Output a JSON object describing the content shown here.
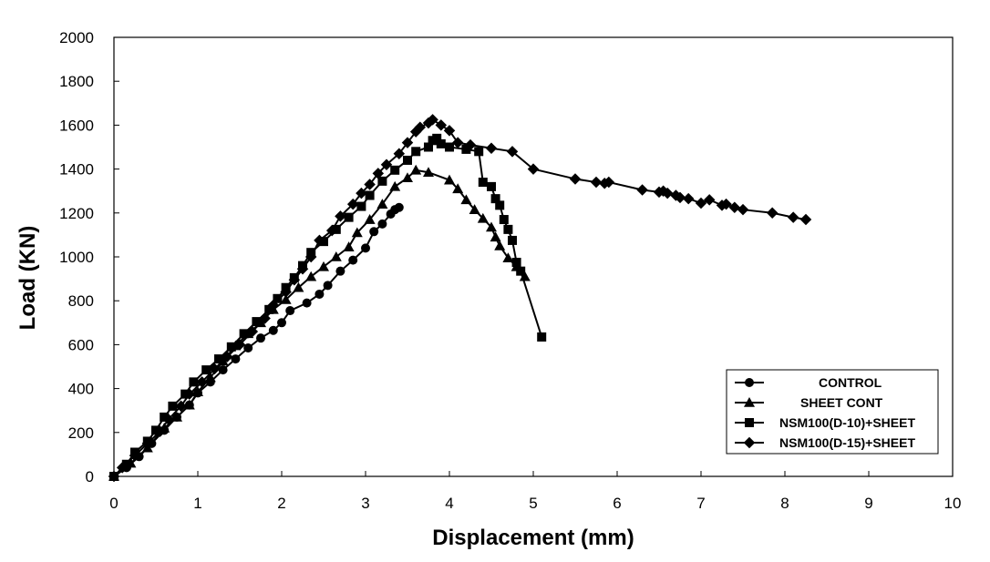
{
  "chart_data": {
    "type": "line",
    "title": "",
    "xlabel": "Displacement (mm)",
    "ylabel": "Load (KN)",
    "xlim": [
      0,
      10
    ],
    "ylim": [
      0,
      2000
    ],
    "xticks": [
      0,
      1,
      2,
      3,
      4,
      5,
      6,
      7,
      8,
      9,
      10
    ],
    "yticks": [
      0,
      200,
      400,
      600,
      800,
      1000,
      1200,
      1400,
      1600,
      1800,
      2000
    ],
    "grid": false,
    "legend_position": "bottom-right",
    "series": [
      {
        "name": "CONTROL",
        "marker": "circle",
        "color": "#000000",
        "points": [
          [
            0,
            0
          ],
          [
            0.15,
            40
          ],
          [
            0.3,
            90
          ],
          [
            0.45,
            150
          ],
          [
            0.6,
            210
          ],
          [
            0.75,
            270
          ],
          [
            0.9,
            325
          ],
          [
            1.0,
            380
          ],
          [
            1.15,
            430
          ],
          [
            1.3,
            485
          ],
          [
            1.45,
            535
          ],
          [
            1.6,
            585
          ],
          [
            1.75,
            630
          ],
          [
            1.9,
            665
          ],
          [
            2.0,
            700
          ],
          [
            2.1,
            755
          ],
          [
            2.3,
            790
          ],
          [
            2.45,
            830
          ],
          [
            2.55,
            870
          ],
          [
            2.7,
            935
          ],
          [
            2.85,
            985
          ],
          [
            3.0,
            1040
          ],
          [
            3.1,
            1115
          ],
          [
            3.2,
            1150
          ],
          [
            3.3,
            1195
          ],
          [
            3.35,
            1215
          ],
          [
            3.4,
            1225
          ]
        ]
      },
      {
        "name": "SHEET CONT",
        "marker": "triangle",
        "color": "#000000",
        "points": [
          [
            0,
            0
          ],
          [
            0.2,
            60
          ],
          [
            0.4,
            130
          ],
          [
            0.6,
            220
          ],
          [
            0.75,
            270
          ],
          [
            0.9,
            325
          ],
          [
            1.0,
            385
          ],
          [
            1.15,
            450
          ],
          [
            1.3,
            525
          ],
          [
            1.45,
            595
          ],
          [
            1.6,
            650
          ],
          [
            1.75,
            700
          ],
          [
            1.9,
            760
          ],
          [
            2.05,
            805
          ],
          [
            2.2,
            860
          ],
          [
            2.35,
            910
          ],
          [
            2.5,
            955
          ],
          [
            2.65,
            1000
          ],
          [
            2.8,
            1045
          ],
          [
            2.9,
            1110
          ],
          [
            3.05,
            1170
          ],
          [
            3.2,
            1240
          ],
          [
            3.35,
            1320
          ],
          [
            3.5,
            1360
          ],
          [
            3.6,
            1395
          ],
          [
            3.75,
            1385
          ],
          [
            4.0,
            1350
          ],
          [
            4.1,
            1310
          ],
          [
            4.2,
            1260
          ],
          [
            4.3,
            1215
          ],
          [
            4.4,
            1175
          ],
          [
            4.5,
            1135
          ],
          [
            4.55,
            1090
          ],
          [
            4.6,
            1050
          ],
          [
            4.7,
            995
          ],
          [
            4.8,
            955
          ],
          [
            4.9,
            910
          ]
        ]
      },
      {
        "name": "NSM100(D-10)+SHEET",
        "marker": "square",
        "color": "#000000",
        "points": [
          [
            0,
            0
          ],
          [
            0.15,
            55
          ],
          [
            0.25,
            110
          ],
          [
            0.4,
            160
          ],
          [
            0.5,
            210
          ],
          [
            0.6,
            270
          ],
          [
            0.7,
            320
          ],
          [
            0.85,
            375
          ],
          [
            0.95,
            430
          ],
          [
            1.1,
            485
          ],
          [
            1.25,
            535
          ],
          [
            1.4,
            590
          ],
          [
            1.55,
            650
          ],
          [
            1.7,
            705
          ],
          [
            1.85,
            760
          ],
          [
            1.95,
            810
          ],
          [
            2.05,
            860
          ],
          [
            2.15,
            905
          ],
          [
            2.25,
            960
          ],
          [
            2.35,
            1020
          ],
          [
            2.5,
            1070
          ],
          [
            2.65,
            1125
          ],
          [
            2.8,
            1180
          ],
          [
            2.95,
            1230
          ],
          [
            3.05,
            1280
          ],
          [
            3.2,
            1345
          ],
          [
            3.35,
            1395
          ],
          [
            3.5,
            1440
          ],
          [
            3.6,
            1480
          ],
          [
            3.75,
            1500
          ],
          [
            3.8,
            1530
          ],
          [
            3.85,
            1540
          ],
          [
            3.9,
            1515
          ],
          [
            4.0,
            1500
          ],
          [
            4.2,
            1490
          ],
          [
            4.35,
            1480
          ],
          [
            4.4,
            1340
          ],
          [
            4.5,
            1320
          ],
          [
            4.55,
            1265
          ],
          [
            4.6,
            1235
          ],
          [
            4.65,
            1170
          ],
          [
            4.7,
            1125
          ],
          [
            4.75,
            1075
          ],
          [
            4.8,
            975
          ],
          [
            4.85,
            935
          ],
          [
            5.1,
            635
          ]
        ]
      },
      {
        "name": "NSM100(D-15)+SHEET",
        "marker": "diamond",
        "color": "#000000",
        "points": [
          [
            0,
            0
          ],
          [
            0.1,
            40
          ],
          [
            0.25,
            95
          ],
          [
            0.4,
            150
          ],
          [
            0.55,
            205
          ],
          [
            0.65,
            260
          ],
          [
            0.8,
            320
          ],
          [
            0.9,
            375
          ],
          [
            1.05,
            430
          ],
          [
            1.2,
            490
          ],
          [
            1.35,
            545
          ],
          [
            1.5,
            600
          ],
          [
            1.65,
            660
          ],
          [
            1.8,
            720
          ],
          [
            1.9,
            780
          ],
          [
            2.05,
            840
          ],
          [
            2.15,
            895
          ],
          [
            2.25,
            945
          ],
          [
            2.35,
            1000
          ],
          [
            2.45,
            1075
          ],
          [
            2.6,
            1120
          ],
          [
            2.7,
            1185
          ],
          [
            2.85,
            1240
          ],
          [
            2.95,
            1290
          ],
          [
            3.05,
            1330
          ],
          [
            3.15,
            1380
          ],
          [
            3.25,
            1420
          ],
          [
            3.4,
            1470
          ],
          [
            3.5,
            1520
          ],
          [
            3.6,
            1570
          ],
          [
            3.65,
            1590
          ],
          [
            3.75,
            1610
          ],
          [
            3.8,
            1625
          ],
          [
            3.9,
            1600
          ],
          [
            4.0,
            1575
          ],
          [
            4.1,
            1520
          ],
          [
            4.25,
            1510
          ],
          [
            4.5,
            1495
          ],
          [
            4.75,
            1480
          ],
          [
            5.0,
            1400
          ],
          [
            5.5,
            1355
          ],
          [
            5.75,
            1340
          ],
          [
            5.85,
            1335
          ],
          [
            5.9,
            1340
          ],
          [
            6.3,
            1305
          ],
          [
            6.5,
            1295
          ],
          [
            6.55,
            1300
          ],
          [
            6.6,
            1290
          ],
          [
            6.7,
            1280
          ],
          [
            6.75,
            1270
          ],
          [
            6.85,
            1265
          ],
          [
            7.0,
            1245
          ],
          [
            7.1,
            1260
          ],
          [
            7.25,
            1235
          ],
          [
            7.3,
            1240
          ],
          [
            7.4,
            1225
          ],
          [
            7.5,
            1215
          ],
          [
            7.85,
            1200
          ],
          [
            8.1,
            1180
          ],
          [
            8.25,
            1170
          ]
        ]
      }
    ]
  }
}
